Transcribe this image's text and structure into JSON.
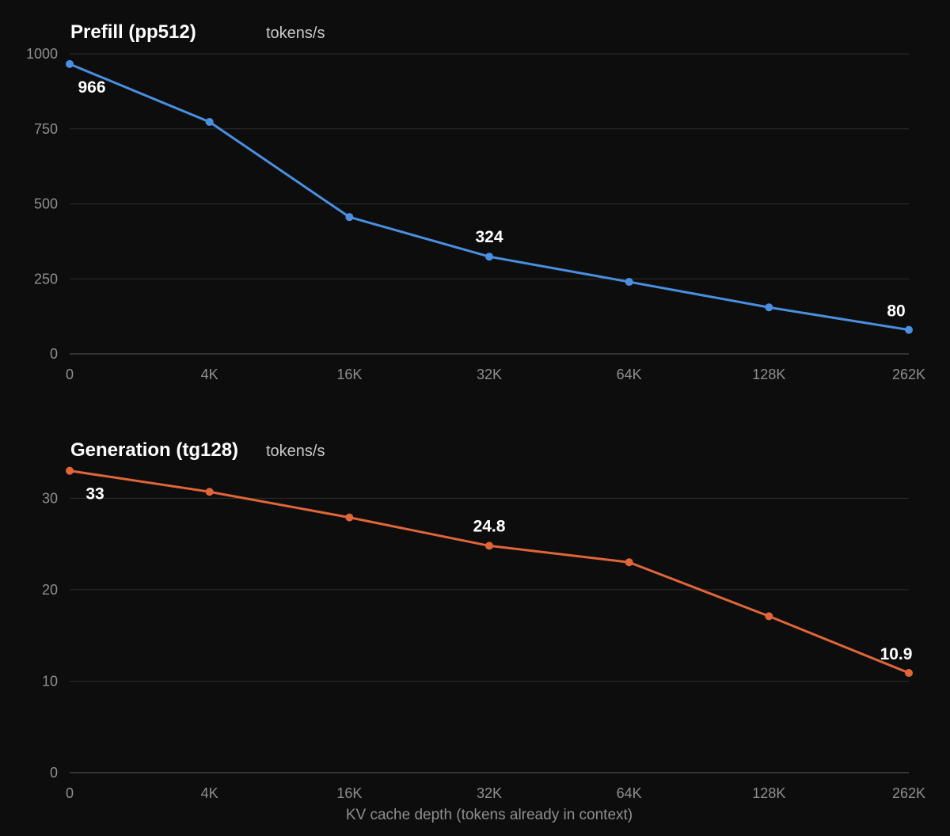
{
  "chart_data": [
    {
      "type": "line",
      "title": "Prefill (pp512)",
      "unit": "tokens/s",
      "categories": [
        "0",
        "4K",
        "16K",
        "32K",
        "64K",
        "128K",
        "262K"
      ],
      "series": [
        {
          "values": [
            966,
            773,
            456,
            324,
            240,
            155,
            80
          ],
          "color": "#4a8fe0"
        }
      ],
      "ylim": [
        0,
        1000
      ],
      "yticks": [
        "0",
        "250",
        "500",
        "750",
        "1000"
      ],
      "data_labels": [
        {
          "index": 0,
          "text": "966"
        },
        {
          "index": 3,
          "text": "324"
        },
        {
          "index": 6,
          "text": "80"
        }
      ],
      "grid": true
    },
    {
      "type": "line",
      "title": "Generation (tg128)",
      "unit": "tokens/s",
      "categories": [
        "0",
        "4K",
        "16K",
        "32K",
        "64K",
        "128K",
        "262K"
      ],
      "series": [
        {
          "values": [
            33,
            30.7,
            27.9,
            24.8,
            23.0,
            17.1,
            10.9
          ],
          "color": "#e0663a"
        }
      ],
      "ylim": [
        0,
        36
      ],
      "yticks": [
        "0",
        "10",
        "20",
        "30"
      ],
      "data_labels": [
        {
          "index": 0,
          "text": "33"
        },
        {
          "index": 3,
          "text": "24.8"
        },
        {
          "index": 6,
          "text": "10.9"
        }
      ],
      "xlabel": "KV cache depth (tokens already in context)",
      "grid": true
    }
  ]
}
